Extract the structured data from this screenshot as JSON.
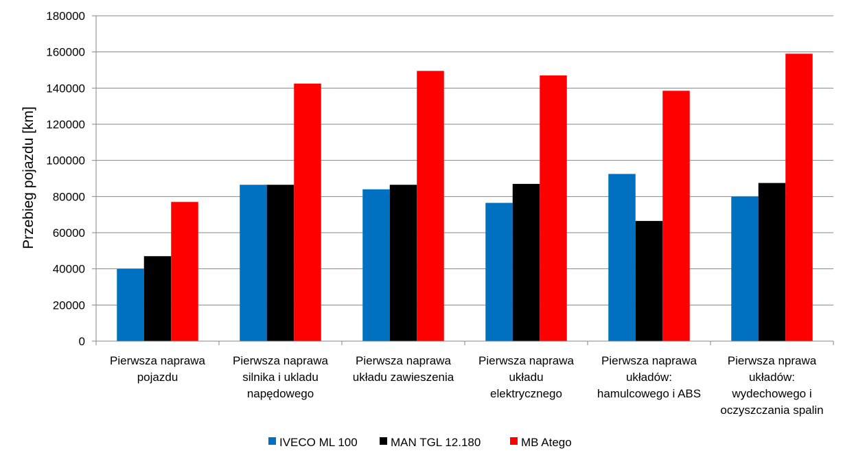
{
  "chart_data": {
    "type": "bar",
    "categories": [
      [
        "Pierwsza naprawa",
        "pojazdu"
      ],
      [
        "Pierwsza naprawa",
        "silnika i ukladu",
        "napędowego"
      ],
      [
        "Pierwsza naprawa",
        "układu zawieszenia"
      ],
      [
        "Pierwsza naprawa",
        "układu",
        "elektrycznego"
      ],
      [
        "Pierwsza naprawa",
        "układów:",
        "hamulcowego i ABS"
      ],
      [
        "Pierwsza nprawa",
        "układów:",
        "wydechowego i",
        "oczyszczania spalin"
      ]
    ],
    "series": [
      {
        "name": "IVECO ML 100",
        "color": "#0070C0",
        "values": [
          40000,
          86500,
          84000,
          76500,
          92500,
          80000
        ]
      },
      {
        "name": "MAN TGL 12.180",
        "color": "#000000",
        "values": [
          47000,
          86500,
          86500,
          87000,
          66500,
          87500
        ]
      },
      {
        "name": "MB Atego",
        "color": "#FF0000",
        "values": [
          77000,
          142500,
          149500,
          147000,
          138500,
          159000
        ]
      }
    ],
    "ylabel": "Przebieg pojazdu [km]",
    "ylim": [
      0,
      180000
    ],
    "yticks": [
      "0",
      "20000",
      "40000",
      "60000",
      "80000",
      "100000",
      "120000",
      "140000",
      "160000",
      "180000"
    ],
    "grid": true,
    "legend_position": "bottom",
    "gridline_color": "#868686"
  }
}
